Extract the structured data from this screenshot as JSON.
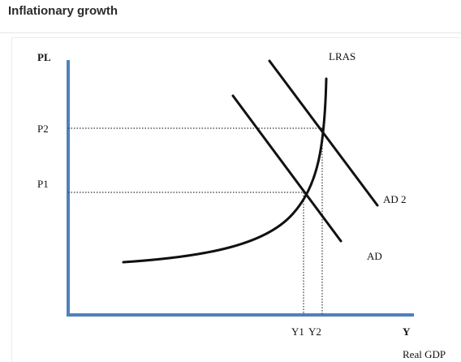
{
  "page": {
    "title": "Inflationary growth"
  },
  "diagram": {
    "y_axis_label": "PL",
    "x_axis_label": "Y",
    "x_axis_caption": "Real GDP",
    "price_levels": [
      "P2",
      "P1"
    ],
    "output_levels": [
      "Y1",
      "Y2"
    ],
    "curves": {
      "lras": "LRAS",
      "ad": "AD",
      "ad2": "AD 2"
    },
    "colors": {
      "axis": "#4f81bd",
      "curve": "#111111",
      "guide": "#333333"
    }
  }
}
